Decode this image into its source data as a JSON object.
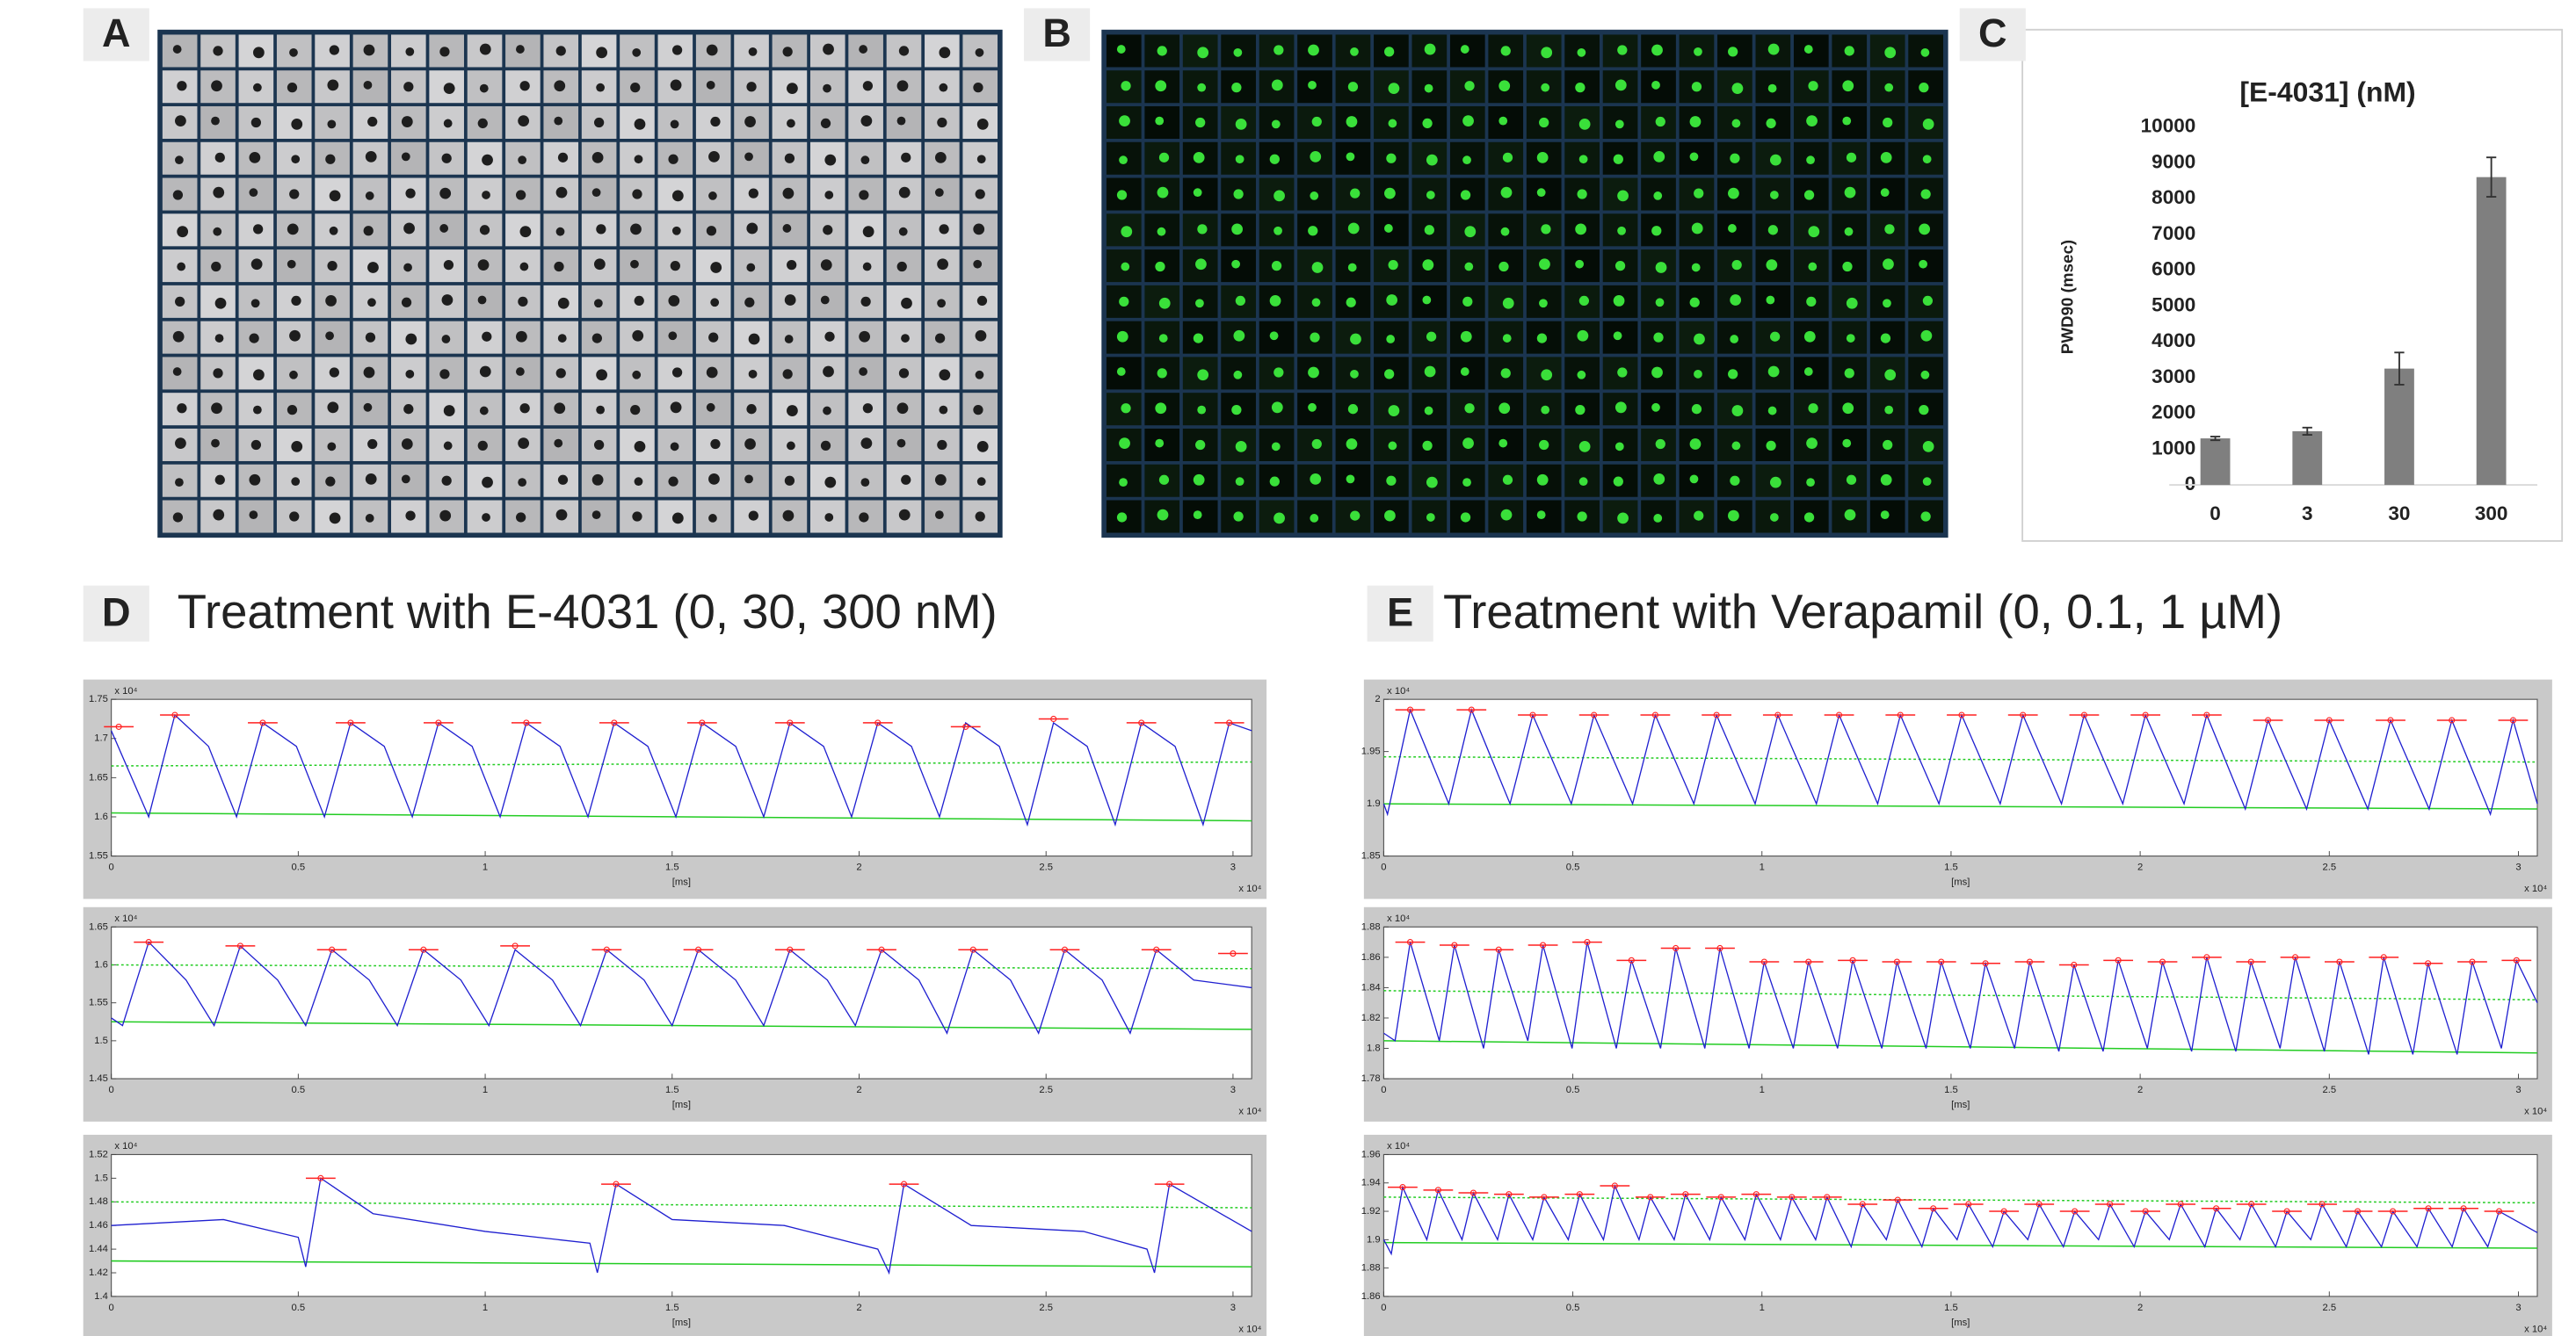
{
  "panel_labels": [
    "A",
    "B",
    "C"
  ],
  "sections": [
    {
      "label": "D",
      "title": "Treatment with E-4031 (0, 30, 300 nM)"
    },
    {
      "label": "E",
      "title": "Treatment with Verapamil (0, 0.1, 1 µM)"
    }
  ],
  "chart_data": [
    {
      "type": "bar",
      "title": "[E-4031] (nM)",
      "ylabel": "PWD90 (msec)",
      "color": "#7f7f7f",
      "categories": [
        "0",
        "3",
        "30",
        "300"
      ],
      "values": [
        1300,
        1500,
        3250,
        8600
      ],
      "errors": [
        50,
        100,
        450,
        550
      ],
      "ylim": [
        0,
        10000
      ],
      "yticks": [
        0,
        1000,
        2000,
        3000,
        4000,
        5000,
        6000,
        7000,
        8000,
        9000,
        10000
      ]
    },
    {
      "type": "trace",
      "xlabel": "[ms]",
      "x_multiplier": "x 10⁴",
      "y_multiplier": "x 10⁴",
      "xlim": [
        0,
        3.05
      ],
      "xticks": [
        0,
        0.5,
        1,
        1.5,
        2,
        2.5,
        3
      ],
      "ylim": [
        1.55,
        1.75
      ],
      "yticks": [
        1.55,
        1.6,
        1.65,
        1.7,
        1.75
      ],
      "trace": {
        "color": "#1f1fd0",
        "x": [
          0,
          0.1,
          0.17,
          0.26,
          0.335,
          0.405,
          0.495,
          0.57,
          0.64,
          0.73,
          0.805,
          0.875,
          0.965,
          1.04,
          1.11,
          1.2,
          1.275,
          1.345,
          1.435,
          1.51,
          1.58,
          1.67,
          1.745,
          1.815,
          1.905,
          1.98,
          2.05,
          2.14,
          2.215,
          2.285,
          2.375,
          2.45,
          2.52,
          2.61,
          2.685,
          2.755,
          2.845,
          2.92,
          2.99,
          3.05
        ],
        "values": [
          1.71,
          1.6,
          1.73,
          1.69,
          1.6,
          1.72,
          1.69,
          1.6,
          1.72,
          1.69,
          1.6,
          1.72,
          1.69,
          1.6,
          1.72,
          1.69,
          1.6,
          1.72,
          1.69,
          1.6,
          1.72,
          1.69,
          1.6,
          1.72,
          1.69,
          1.6,
          1.72,
          1.69,
          1.6,
          1.72,
          1.69,
          1.59,
          1.72,
          1.69,
          1.59,
          1.72,
          1.69,
          1.59,
          1.72,
          1.71
        ]
      },
      "peaks": {
        "color": "#ff2020",
        "x": [
          0.02,
          0.17,
          0.405,
          0.64,
          0.875,
          1.11,
          1.345,
          1.58,
          1.815,
          2.05,
          2.285,
          2.52,
          2.755,
          2.99
        ],
        "values": [
          1.715,
          1.73,
          1.72,
          1.72,
          1.72,
          1.72,
          1.72,
          1.72,
          1.72,
          1.72,
          1.715,
          1.725,
          1.72,
          1.72
        ]
      },
      "baseline": {
        "color": "#22cc22",
        "x": [
          0,
          3.05
        ],
        "values": [
          1.605,
          1.595
        ]
      },
      "threshold": {
        "color": "#22cc22",
        "dashed": true,
        "x": [
          0,
          3.05
        ],
        "values": [
          1.665,
          1.67
        ]
      }
    },
    {
      "type": "trace",
      "xlabel": "[ms]",
      "x_multiplier": "x 10⁴",
      "y_multiplier": "x 10⁴",
      "xlim": [
        0,
        3.05
      ],
      "xticks": [
        0,
        0.5,
        1,
        1.5,
        2,
        2.5,
        3
      ],
      "ylim": [
        1.45,
        1.65
      ],
      "yticks": [
        1.45,
        1.5,
        1.55,
        1.6,
        1.65
      ],
      "trace": {
        "color": "#1f1fd0",
        "x": [
          0,
          0.03,
          0.1,
          0.2,
          0.275,
          0.345,
          0.445,
          0.52,
          0.59,
          0.69,
          0.765,
          0.835,
          0.935,
          1.01,
          1.08,
          1.18,
          1.255,
          1.325,
          1.425,
          1.5,
          1.57,
          1.67,
          1.745,
          1.815,
          1.915,
          1.99,
          2.06,
          2.16,
          2.235,
          2.305,
          2.405,
          2.48,
          2.55,
          2.65,
          2.725,
          2.795,
          2.895,
          3.05
        ],
        "values": [
          1.53,
          1.52,
          1.63,
          1.58,
          1.52,
          1.625,
          1.58,
          1.52,
          1.62,
          1.58,
          1.52,
          1.62,
          1.58,
          1.52,
          1.62,
          1.58,
          1.52,
          1.62,
          1.58,
          1.52,
          1.62,
          1.58,
          1.52,
          1.62,
          1.58,
          1.52,
          1.62,
          1.58,
          1.51,
          1.62,
          1.58,
          1.51,
          1.62,
          1.58,
          1.51,
          1.62,
          1.58,
          1.57
        ]
      },
      "peaks": {
        "color": "#ff2020",
        "x": [
          0.1,
          0.345,
          0.59,
          0.835,
          1.08,
          1.325,
          1.57,
          1.815,
          2.06,
          2.305,
          2.55,
          2.795,
          3.0
        ],
        "values": [
          1.63,
          1.625,
          1.62,
          1.62,
          1.625,
          1.62,
          1.62,
          1.62,
          1.62,
          1.62,
          1.62,
          1.62,
          1.615
        ]
      },
      "baseline": {
        "color": "#22cc22",
        "x": [
          0,
          3.05
        ],
        "values": [
          1.525,
          1.515
        ]
      },
      "threshold": {
        "color": "#22cc22",
        "dashed": true,
        "x": [
          0,
          3.05
        ],
        "values": [
          1.6,
          1.595
        ]
      }
    },
    {
      "type": "trace",
      "xlabel": "[ms]",
      "x_multiplier": "x 10⁴",
      "y_multiplier": "x 10⁴",
      "xlim": [
        0,
        3.05
      ],
      "xticks": [
        0,
        0.5,
        1,
        1.5,
        2,
        2.5,
        3
      ],
      "ylim": [
        1.4,
        1.52
      ],
      "yticks": [
        1.4,
        1.42,
        1.44,
        1.46,
        1.48,
        1.5,
        1.52
      ],
      "trace": {
        "color": "#1f1fd0",
        "x": [
          0,
          0.3,
          0.5,
          0.52,
          0.56,
          0.7,
          1.0,
          1.28,
          1.3,
          1.35,
          1.5,
          1.8,
          2.05,
          2.08,
          2.12,
          2.3,
          2.6,
          2.77,
          2.79,
          2.83,
          3.05
        ],
        "values": [
          1.46,
          1.465,
          1.45,
          1.425,
          1.5,
          1.47,
          1.455,
          1.445,
          1.42,
          1.495,
          1.465,
          1.46,
          1.44,
          1.42,
          1.495,
          1.46,
          1.455,
          1.44,
          1.42,
          1.495,
          1.455
        ]
      },
      "peaks": {
        "color": "#ff2020",
        "x": [
          0.56,
          1.35,
          2.12,
          2.83
        ],
        "values": [
          1.5,
          1.495,
          1.495,
          1.495
        ]
      },
      "baseline": {
        "color": "#22cc22",
        "x": [
          0,
          3.05
        ],
        "values": [
          1.43,
          1.425
        ]
      },
      "threshold": {
        "color": "#22cc22",
        "dashed": true,
        "x": [
          0,
          3.05
        ],
        "values": [
          1.48,
          1.475
        ]
      }
    },
    {
      "type": "trace",
      "xlabel": "[ms]",
      "x_multiplier": "x 10⁴",
      "y_multiplier": "x 10⁴",
      "xlim": [
        0,
        3.05
      ],
      "xticks": [
        0,
        0.5,
        1,
        1.5,
        2,
        2.5,
        3
      ],
      "ylim": [
        1.85,
        2
      ],
      "yticks": [
        1.85,
        1.9,
        1.95,
        2
      ],
      "trace": {
        "color": "#1f1fd0",
        "x": [
          0,
          0.01,
          0.07,
          0.172,
          0.232,
          0.334,
          0.394,
          0.496,
          0.556,
          0.658,
          0.718,
          0.82,
          0.88,
          0.982,
          1.042,
          1.144,
          1.204,
          1.306,
          1.366,
          1.468,
          1.528,
          1.63,
          1.69,
          1.792,
          1.852,
          1.954,
          2.014,
          2.116,
          2.176,
          2.278,
          2.338,
          2.44,
          2.5,
          2.602,
          2.662,
          2.764,
          2.824,
          2.926,
          2.986,
          3.05
        ],
        "values": [
          1.9,
          1.89,
          1.99,
          1.9,
          1.99,
          1.9,
          1.985,
          1.9,
          1.985,
          1.9,
          1.985,
          1.9,
          1.985,
          1.9,
          1.985,
          1.9,
          1.985,
          1.9,
          1.985,
          1.9,
          1.985,
          1.9,
          1.985,
          1.9,
          1.985,
          1.9,
          1.985,
          1.9,
          1.985,
          1.895,
          1.98,
          1.895,
          1.98,
          1.895,
          1.98,
          1.895,
          1.98,
          1.89,
          1.98,
          1.9
        ]
      },
      "peaks": {
        "color": "#ff2020",
        "x": [
          0.07,
          0.232,
          0.394,
          0.556,
          0.718,
          0.88,
          1.042,
          1.204,
          1.366,
          1.528,
          1.69,
          1.852,
          2.014,
          2.176,
          2.338,
          2.5,
          2.662,
          2.824,
          2.986
        ],
        "values": [
          1.99,
          1.99,
          1.985,
          1.985,
          1.985,
          1.985,
          1.985,
          1.985,
          1.985,
          1.985,
          1.985,
          1.985,
          1.985,
          1.985,
          1.98,
          1.98,
          1.98,
          1.98,
          1.98
        ]
      },
      "baseline": {
        "color": "#22cc22",
        "x": [
          0,
          3.05
        ],
        "values": [
          1.9,
          1.895
        ]
      },
      "threshold": {
        "color": "#22cc22",
        "dashed": true,
        "x": [
          0,
          3.05
        ],
        "values": [
          1.945,
          1.94
        ]
      }
    },
    {
      "type": "trace",
      "xlabel": "[ms]",
      "x_multiplier": "x 10⁴",
      "y_multiplier": "x 10⁴",
      "xlim": [
        0,
        3.05
      ],
      "xticks": [
        0,
        0.5,
        1,
        1.5,
        2,
        2.5,
        3
      ],
      "ylim": [
        1.78,
        1.88
      ],
      "yticks": [
        1.78,
        1.8,
        1.82,
        1.84,
        1.86,
        1.88
      ],
      "trace": {
        "color": "#1f1fd0",
        "x": [
          0,
          0.03,
          0.07,
          0.147,
          0.187,
          0.264,
          0.304,
          0.381,
          0.421,
          0.498,
          0.538,
          0.615,
          0.655,
          0.732,
          0.772,
          0.849,
          0.889,
          0.966,
          1.006,
          1.083,
          1.123,
          1.2,
          1.24,
          1.317,
          1.357,
          1.434,
          1.474,
          1.551,
          1.591,
          1.668,
          1.708,
          1.785,
          1.825,
          1.902,
          1.942,
          2.019,
          2.059,
          2.136,
          2.176,
          2.253,
          2.293,
          2.37,
          2.41,
          2.487,
          2.527,
          2.604,
          2.644,
          2.721,
          2.761,
          2.838,
          2.878,
          2.955,
          2.995,
          3.05
        ],
        "values": [
          1.81,
          1.805,
          1.87,
          1.805,
          1.868,
          1.8,
          1.865,
          1.805,
          1.868,
          1.8,
          1.87,
          1.8,
          1.858,
          1.8,
          1.866,
          1.8,
          1.866,
          1.8,
          1.857,
          1.8,
          1.857,
          1.8,
          1.858,
          1.8,
          1.857,
          1.8,
          1.857,
          1.8,
          1.856,
          1.8,
          1.857,
          1.798,
          1.855,
          1.798,
          1.858,
          1.8,
          1.857,
          1.798,
          1.86,
          1.798,
          1.857,
          1.8,
          1.86,
          1.798,
          1.857,
          1.796,
          1.86,
          1.796,
          1.856,
          1.796,
          1.857,
          1.8,
          1.858,
          1.83
        ]
      },
      "peaks": {
        "color": "#ff2020",
        "x": [
          0.07,
          0.187,
          0.304,
          0.421,
          0.538,
          0.655,
          0.772,
          0.889,
          1.006,
          1.123,
          1.24,
          1.357,
          1.474,
          1.591,
          1.708,
          1.825,
          1.942,
          2.059,
          2.176,
          2.293,
          2.41,
          2.527,
          2.644,
          2.761,
          2.878,
          2.995
        ],
        "values": [
          1.87,
          1.868,
          1.865,
          1.868,
          1.87,
          1.858,
          1.866,
          1.866,
          1.857,
          1.857,
          1.858,
          1.857,
          1.857,
          1.856,
          1.857,
          1.855,
          1.858,
          1.857,
          1.86,
          1.857,
          1.86,
          1.857,
          1.86,
          1.856,
          1.857,
          1.858
        ]
      },
      "baseline": {
        "color": "#22cc22",
        "x": [
          0,
          3.05
        ],
        "values": [
          1.805,
          1.797
        ]
      },
      "threshold": {
        "color": "#22cc22",
        "dashed": true,
        "x": [
          0,
          3.05
        ],
        "values": [
          1.838,
          1.832
        ]
      }
    },
    {
      "type": "trace",
      "xlabel": "[ms]",
      "x_multiplier": "x 10⁴",
      "y_multiplier": "x 10⁴",
      "xlim": [
        0,
        3.05
      ],
      "xticks": [
        0,
        0.5,
        1,
        1.5,
        2,
        2.5,
        3
      ],
      "ylim": [
        1.86,
        1.96
      ],
      "yticks": [
        1.86,
        1.88,
        1.9,
        1.92,
        1.94,
        1.96
      ],
      "trace": {
        "color": "#1f1fd0",
        "x": [
          0,
          0.02,
          0.05,
          0.114,
          0.144,
          0.207,
          0.237,
          0.301,
          0.331,
          0.394,
          0.424,
          0.488,
          0.518,
          0.581,
          0.611,
          0.675,
          0.705,
          0.768,
          0.798,
          0.862,
          0.892,
          0.955,
          0.985,
          1.049,
          1.079,
          1.142,
          1.172,
          1.236,
          1.266,
          1.329,
          1.359,
          1.423,
          1.453,
          1.516,
          1.546,
          1.61,
          1.64,
          1.703,
          1.733,
          1.797,
          1.827,
          1.89,
          1.92,
          1.984,
          2.014,
          2.077,
          2.107,
          2.171,
          2.201,
          2.264,
          2.294,
          2.358,
          2.388,
          2.451,
          2.481,
          2.545,
          2.575,
          2.638,
          2.668,
          2.732,
          2.762,
          2.825,
          2.855,
          2.919,
          2.949,
          3.05
        ],
        "values": [
          1.9,
          1.89,
          1.937,
          1.9,
          1.935,
          1.9,
          1.933,
          1.9,
          1.932,
          1.9,
          1.93,
          1.9,
          1.932,
          1.9,
          1.938,
          1.9,
          1.93,
          1.9,
          1.932,
          1.9,
          1.93,
          1.9,
          1.932,
          1.9,
          1.93,
          1.9,
          1.93,
          1.895,
          1.925,
          1.9,
          1.928,
          1.895,
          1.922,
          1.9,
          1.925,
          1.895,
          1.92,
          1.9,
          1.925,
          1.895,
          1.92,
          1.9,
          1.925,
          1.895,
          1.92,
          1.9,
          1.925,
          1.895,
          1.922,
          1.9,
          1.925,
          1.895,
          1.92,
          1.9,
          1.925,
          1.895,
          1.92,
          1.895,
          1.92,
          1.895,
          1.922,
          1.895,
          1.922,
          1.895,
          1.92,
          1.905
        ]
      },
      "peaks": {
        "color": "#ff2020",
        "x": [
          0.05,
          0.144,
          0.237,
          0.331,
          0.424,
          0.518,
          0.611,
          0.705,
          0.798,
          0.892,
          0.985,
          1.079,
          1.172,
          1.266,
          1.359,
          1.453,
          1.546,
          1.64,
          1.733,
          1.827,
          1.92,
          2.014,
          2.107,
          2.201,
          2.294,
          2.388,
          2.481,
          2.575,
          2.668,
          2.762,
          2.855,
          2.949
        ],
        "values": [
          1.937,
          1.935,
          1.933,
          1.932,
          1.93,
          1.932,
          1.938,
          1.93,
          1.932,
          1.93,
          1.932,
          1.93,
          1.93,
          1.925,
          1.928,
          1.922,
          1.925,
          1.92,
          1.925,
          1.92,
          1.925,
          1.92,
          1.925,
          1.922,
          1.925,
          1.92,
          1.925,
          1.92,
          1.92,
          1.922,
          1.922,
          1.92
        ]
      },
      "baseline": {
        "color": "#22cc22",
        "x": [
          0,
          3.05
        ],
        "values": [
          1.898,
          1.894
        ]
      },
      "threshold": {
        "color": "#22cc22",
        "dashed": true,
        "x": [
          0,
          3.05
        ],
        "values": [
          1.93,
          1.926
        ]
      }
    }
  ]
}
